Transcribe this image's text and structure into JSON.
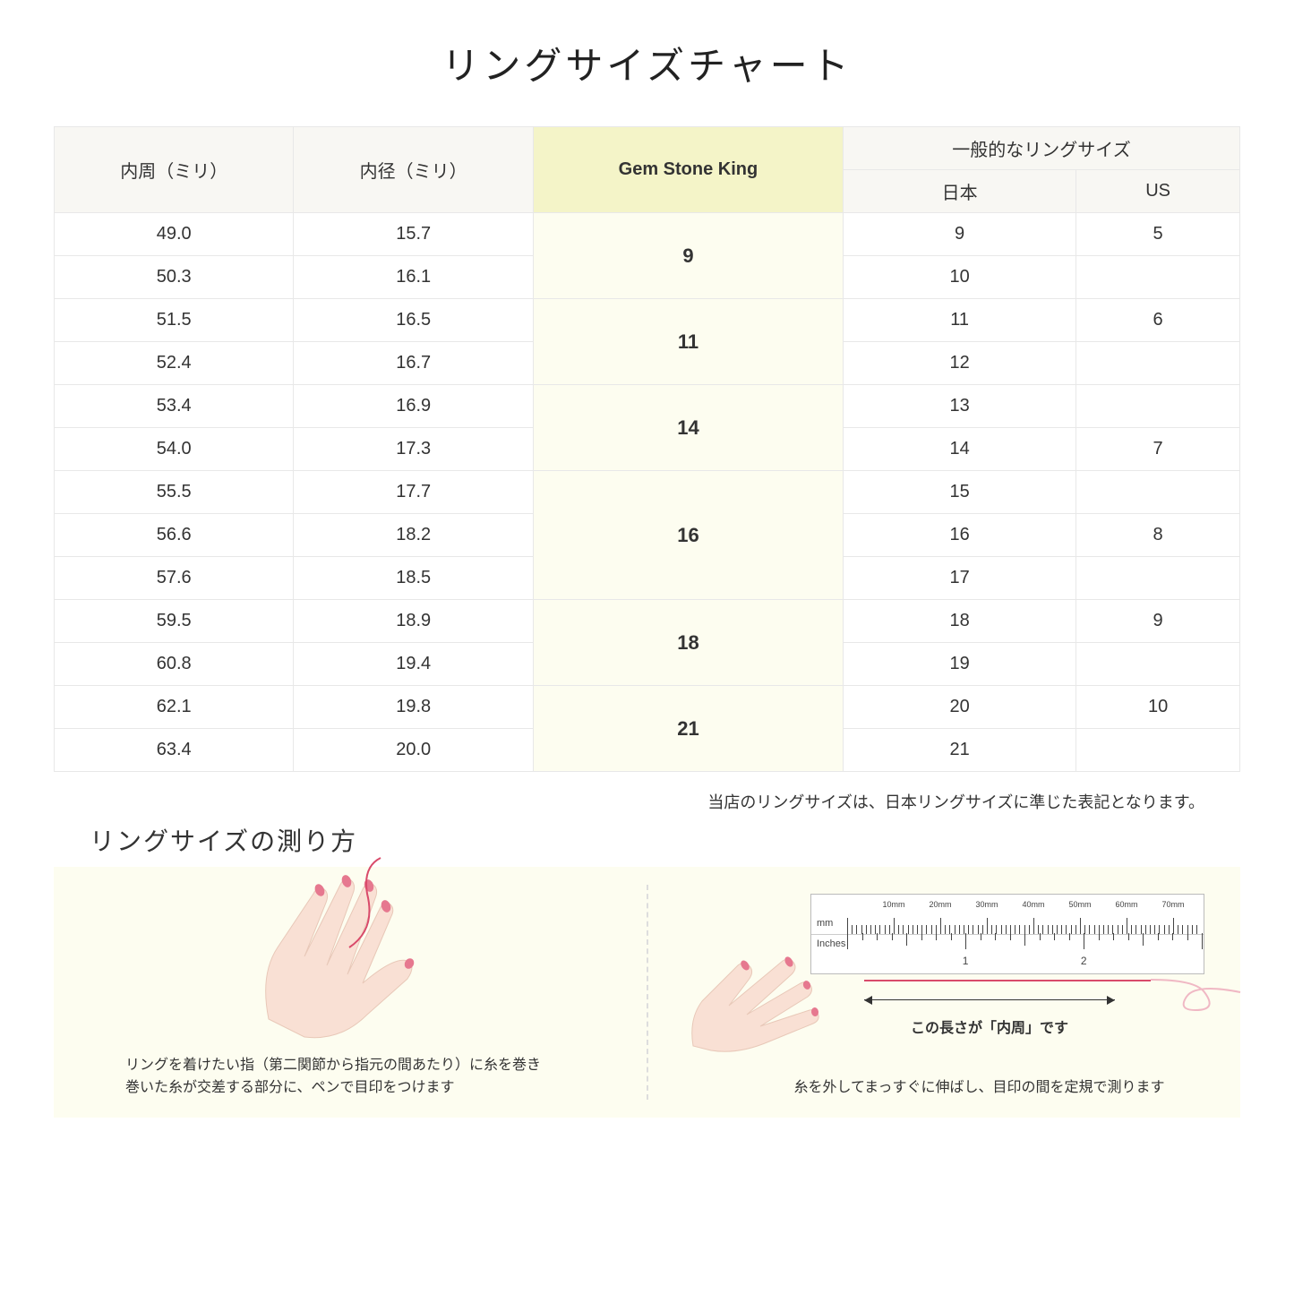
{
  "title": "リングサイズチャート",
  "table": {
    "headers": {
      "circumference": "内周（ミリ）",
      "diameter": "内径（ミリ）",
      "gsk": "Gem Stone King",
      "general": "一般的なリングサイズ",
      "japan": "日本",
      "us": "US"
    },
    "groups": [
      {
        "gsk": "9",
        "rows": [
          {
            "circ": "49.0",
            "dia": "15.7",
            "jp": "9",
            "us": "5"
          },
          {
            "circ": "50.3",
            "dia": "16.1",
            "jp": "10",
            "us": ""
          }
        ]
      },
      {
        "gsk": "11",
        "rows": [
          {
            "circ": "51.5",
            "dia": "16.5",
            "jp": "11",
            "us": "6"
          },
          {
            "circ": "52.4",
            "dia": "16.7",
            "jp": "12",
            "us": ""
          }
        ]
      },
      {
        "gsk": "14",
        "rows": [
          {
            "circ": "53.4",
            "dia": "16.9",
            "jp": "13",
            "us": ""
          },
          {
            "circ": "54.0",
            "dia": "17.3",
            "jp": "14",
            "us": "7"
          }
        ]
      },
      {
        "gsk": "16",
        "rows": [
          {
            "circ": "55.5",
            "dia": "17.7",
            "jp": "15",
            "us": ""
          },
          {
            "circ": "56.6",
            "dia": "18.2",
            "jp": "16",
            "us": "8"
          },
          {
            "circ": "57.6",
            "dia": "18.5",
            "jp": "17",
            "us": ""
          }
        ]
      },
      {
        "gsk": "18",
        "rows": [
          {
            "circ": "59.5",
            "dia": "18.9",
            "jp": "18",
            "us": "9"
          },
          {
            "circ": "60.8",
            "dia": "19.4",
            "jp": "19",
            "us": ""
          }
        ]
      },
      {
        "gsk": "21",
        "rows": [
          {
            "circ": "62.1",
            "dia": "19.8",
            "jp": "20",
            "us": "10"
          },
          {
            "circ": "63.4",
            "dia": "20.0",
            "jp": "21",
            "us": ""
          }
        ]
      }
    ]
  },
  "note": "当店のリングサイズは、日本リングサイズに準じた表記となります。",
  "howto": {
    "title": "リングサイズの測り方",
    "left_caption_line1": "リングを着けたい指（第二関節から指元の間あたり）に糸を巻き",
    "left_caption_line2": "巻いた糸が交差する部分に、ペンで目印をつけます",
    "right_ruler_label": "この長さが「内周」です",
    "right_caption": "糸を外してまっすぐに伸ばし、目印の間を定規で測ります",
    "ruler": {
      "mm_unit": "mm",
      "in_unit": "Inches",
      "mm_labels": [
        "10mm",
        "20mm",
        "30mm",
        "40mm",
        "50mm",
        "60mm",
        "70mm"
      ],
      "in_labels": [
        "1",
        "2"
      ]
    }
  },
  "colors": {
    "header_bg": "#f8f7f3",
    "gsk_header_bg": "#f4f4c8",
    "gsk_cell_bg": "#fdfdf0",
    "panel_bg": "#fdfdf0",
    "border": "#e8e8e8",
    "thread": "#d94a6a",
    "skin": "#f9e0d4",
    "nail": "#e6788f"
  }
}
